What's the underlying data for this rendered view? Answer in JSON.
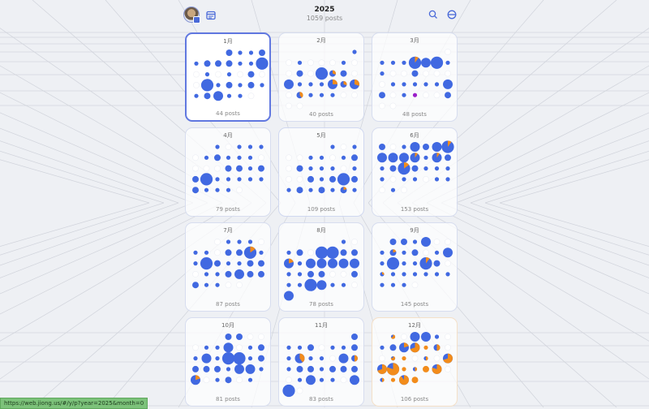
{
  "header": {
    "title": "2025",
    "total_posts": "1059 posts",
    "icons": [
      "avatar",
      "calendar-icon",
      "search-icon",
      "minus-circle-icon"
    ]
  },
  "colors": {
    "primary": "#4169e1",
    "secondary": "#f28c1b",
    "special": "#9b1fc9",
    "selected_border": "#6178e0"
  },
  "months": [
    {
      "label": "1月",
      "posts": "44 posts",
      "state": "selected",
      "rows": [
        [
          null,
          null,
          null,
          2,
          1,
          1,
          2
        ],
        [
          1,
          2,
          2,
          2,
          1,
          1,
          4
        ],
        [
          0,
          1,
          0,
          1,
          0,
          2,
          0
        ],
        [
          0,
          4,
          1,
          2,
          1,
          2,
          1
        ],
        [
          1,
          2,
          3,
          1,
          1,
          0,
          null
        ]
      ],
      "accents": []
    },
    {
      "label": "2月",
      "posts": "40 posts",
      "state": "",
      "rows": [
        [
          null,
          null,
          null,
          null,
          null,
          null,
          1
        ],
        [
          0,
          1,
          0,
          0,
          0,
          1,
          0
        ],
        [
          0,
          2,
          0,
          4,
          2,
          2,
          0
        ],
        [
          3,
          1,
          1,
          1,
          3,
          2,
          3
        ],
        [
          0,
          2,
          1,
          1,
          1,
          0,
          0
        ],
        [
          0,
          0,
          null,
          null,
          null,
          null,
          null
        ]
      ],
      "accents": [
        [
          2,
          4,
          0.3
        ],
        [
          3,
          4,
          0.25
        ],
        [
          3,
          5,
          0.3
        ],
        [
          3,
          6,
          0.3
        ],
        [
          4,
          1,
          0.4
        ]
      ]
    },
    {
      "label": "3月",
      "posts": "48 posts",
      "state": "",
      "rows": [
        [
          null,
          null,
          null,
          null,
          null,
          null,
          0
        ],
        [
          1,
          1,
          1,
          4,
          3,
          4,
          1
        ],
        [
          1,
          0,
          0,
          2,
          0,
          0,
          0
        ],
        [
          0,
          1,
          1,
          1,
          1,
          1,
          3
        ],
        [
          2,
          0,
          1,
          1,
          0,
          0,
          2
        ],
        [
          0,
          0,
          null,
          null,
          null,
          null,
          null
        ]
      ],
      "accents": [
        [
          1,
          3,
          0.1
        ],
        [
          4,
          3,
          1,
          "special"
        ]
      ]
    },
    {
      "label": "4月",
      "posts": "79 posts",
      "state": "",
      "rows": [
        [
          null,
          null,
          1,
          0,
          1,
          1,
          1
        ],
        [
          0,
          1,
          2,
          1,
          1,
          1,
          0
        ],
        [
          0,
          0,
          0,
          2,
          2,
          1,
          2
        ],
        [
          2,
          4,
          1,
          1,
          1,
          1,
          1
        ],
        [
          2,
          1,
          1,
          1,
          0,
          null,
          null
        ]
      ],
      "accents": []
    },
    {
      "label": "5月",
      "posts": "109 posts",
      "state": "recent",
      "rows": [
        [
          null,
          null,
          null,
          null,
          1,
          0,
          1
        ],
        [
          0,
          0,
          1,
          1,
          0,
          1,
          2
        ],
        [
          0,
          2,
          1,
          1,
          1,
          0,
          1
        ],
        [
          0,
          0,
          2,
          1,
          2,
          4,
          2
        ],
        [
          1,
          2,
          1,
          2,
          1,
          2,
          1
        ]
      ],
      "accents": [
        [
          4,
          5,
          0.2
        ]
      ]
    },
    {
      "label": "6月",
      "posts": "153 posts",
      "state": "",
      "rows": [
        [
          2,
          0,
          1,
          3,
          2,
          3,
          4
        ],
        [
          3,
          3,
          3,
          3,
          1,
          3,
          2
        ],
        [
          1,
          2,
          4,
          2,
          1,
          1,
          1
        ],
        [
          1,
          0,
          1,
          1,
          0,
          1,
          1
        ],
        [
          0,
          1,
          0,
          null,
          null,
          null,
          null
        ]
      ],
      "accents": [
        [
          0,
          6,
          0.1
        ],
        [
          1,
          3,
          0.1
        ],
        [
          1,
          5,
          0.1
        ],
        [
          2,
          2,
          0.15
        ]
      ]
    },
    {
      "label": "7月",
      "posts": "87 posts",
      "state": "",
      "rows": [
        [
          null,
          null,
          0,
          1,
          1,
          1,
          0
        ],
        [
          1,
          1,
          0,
          2,
          2,
          4,
          1
        ],
        [
          1,
          4,
          2,
          1,
          1,
          2,
          2
        ],
        [
          0,
          1,
          1,
          2,
          3,
          2,
          2
        ],
        [
          2,
          1,
          1,
          0,
          0,
          null,
          null
        ]
      ],
      "accents": [
        [
          1,
          5,
          0.15
        ]
      ]
    },
    {
      "label": "8月",
      "posts": "78 posts",
      "state": "",
      "rows": [
        [
          null,
          null,
          null,
          null,
          null,
          1,
          0
        ],
        [
          1,
          2,
          0,
          4,
          4,
          2,
          2
        ],
        [
          3,
          1,
          3,
          3,
          3,
          3,
          3
        ],
        [
          1,
          1,
          2,
          2,
          0,
          0,
          2
        ],
        [
          1,
          1,
          4,
          3,
          1,
          1,
          0
        ],
        [
          3,
          null,
          null,
          null,
          null,
          null,
          null
        ]
      ],
      "accents": [
        [
          2,
          0,
          0.2
        ]
      ]
    },
    {
      "label": "9月",
      "posts": "145 posts",
      "state": "",
      "rows": [
        [
          null,
          2,
          2,
          1,
          3,
          0,
          0
        ],
        [
          1,
          2,
          1,
          2,
          0,
          1,
          3
        ],
        [
          1,
          4,
          1,
          1,
          4,
          2,
          0
        ],
        [
          1,
          1,
          1,
          1,
          1,
          1,
          1
        ],
        [
          1,
          1,
          1,
          0,
          null,
          null,
          null
        ]
      ],
      "accents": [
        [
          1,
          1,
          0.2
        ],
        [
          2,
          4,
          0.1
        ],
        [
          3,
          0,
          0.3
        ]
      ]
    },
    {
      "label": "10月",
      "posts": "81 posts",
      "state": "",
      "rows": [
        [
          null,
          null,
          null,
          2,
          2,
          0,
          0
        ],
        [
          0,
          1,
          1,
          3,
          0,
          1,
          2
        ],
        [
          1,
          3,
          1,
          4,
          4,
          1,
          2
        ],
        [
          2,
          2,
          2,
          1,
          3,
          3,
          1
        ],
        [
          3,
          0,
          1,
          2,
          0,
          1,
          null
        ]
      ],
      "accents": [
        [
          4,
          0,
          0.2
        ]
      ]
    },
    {
      "label": "11月",
      "posts": "83 posts",
      "state": "",
      "rows": [
        [
          null,
          null,
          null,
          null,
          null,
          null,
          2
        ],
        [
          1,
          1,
          2,
          0,
          1,
          1,
          2
        ],
        [
          1,
          3,
          1,
          1,
          0,
          3,
          2
        ],
        [
          1,
          2,
          2,
          1,
          2,
          2,
          2
        ],
        [
          0,
          1,
          3,
          1,
          1,
          0,
          3
        ],
        [
          4,
          0,
          null,
          null,
          null,
          null,
          null
        ]
      ],
      "accents": [
        [
          2,
          1,
          0.4
        ],
        [
          2,
          6,
          0.5
        ]
      ]
    },
    {
      "label": "12月",
      "posts": "106 posts",
      "state": "warm",
      "rows": [
        [
          null,
          1,
          0,
          3,
          3,
          1,
          0
        ],
        [
          1,
          2,
          3,
          3,
          1,
          2,
          0
        ],
        [
          0,
          1,
          1,
          0,
          1,
          0,
          3
        ],
        [
          3,
          4,
          1,
          1,
          2,
          3,
          0
        ],
        [
          1,
          1,
          3,
          2,
          null,
          null,
          null
        ]
      ],
      "accents": [
        [
          0,
          1,
          0.7
        ],
        [
          1,
          2,
          0.2
        ],
        [
          1,
          3,
          0.7
        ],
        [
          1,
          4,
          1
        ],
        [
          1,
          5,
          0.5
        ],
        [
          2,
          1,
          0.8
        ],
        [
          2,
          2,
          1
        ],
        [
          2,
          4,
          0.5
        ],
        [
          2,
          6,
          0.7
        ],
        [
          3,
          0,
          0.7
        ],
        [
          3,
          1,
          0.8
        ],
        [
          3,
          2,
          1
        ],
        [
          3,
          3,
          0.5
        ],
        [
          3,
          4,
          1
        ],
        [
          3,
          5,
          0.8
        ],
        [
          4,
          0,
          0.5
        ],
        [
          4,
          1,
          1
        ],
        [
          4,
          2,
          0.9
        ],
        [
          4,
          3,
          1
        ]
      ]
    }
  ],
  "status_bar": {
    "url": "https://web.jiong.us/#/y/p?year=2025&month=0"
  }
}
